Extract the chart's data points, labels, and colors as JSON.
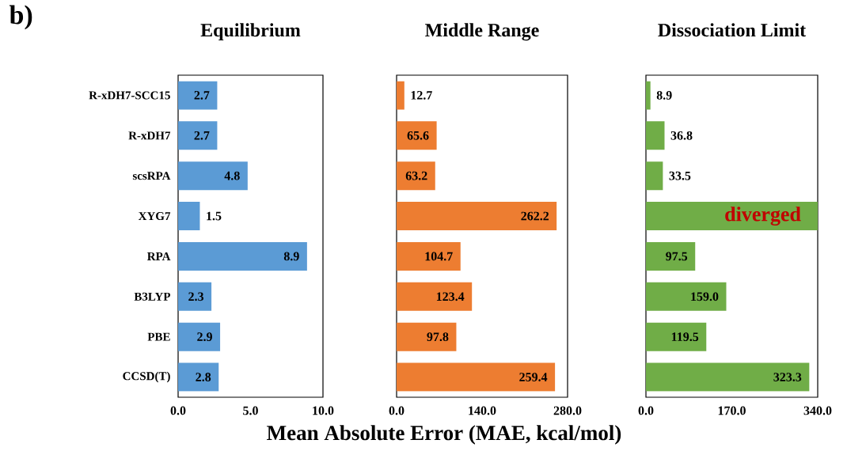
{
  "chart_data": [
    {
      "type": "bar",
      "orientation": "horizontal",
      "title": "Equilibrium",
      "categories": [
        "R-xDH7-SCC15",
        "R-xDH7",
        "scsRPA",
        "XYG7",
        "RPA",
        "B3LYP",
        "PBE",
        "CCSD(T)"
      ],
      "values": [
        2.7,
        2.7,
        4.8,
        1.5,
        8.9,
        2.3,
        2.9,
        2.8
      ],
      "value_labels": [
        "2.7",
        "2.7",
        "4.8",
        "1.5",
        "8.9",
        "2.3",
        "2.9",
        "2.8"
      ],
      "color": "#5b9bd5",
      "xlim": [
        0,
        10
      ],
      "xticks": [
        {
          "value": 0,
          "label": "0.0"
        },
        {
          "value": 5,
          "label": "5.0"
        },
        {
          "value": 10,
          "label": "10.0"
        }
      ],
      "annotations": [
        "b)"
      ]
    },
    {
      "type": "bar",
      "orientation": "horizontal",
      "title": "Middle Range",
      "xlabel": "Mean Absolute Error (MAE, kcal/mol)",
      "categories": [
        null,
        null,
        null,
        null,
        null,
        null,
        null,
        null
      ],
      "values": [
        12.7,
        65.6,
        63.2,
        262.2,
        104.7,
        123.4,
        97.8,
        259.4
      ],
      "value_labels": [
        "12.7",
        "65.6",
        "63.2",
        "262.2",
        "104.7",
        "123.4",
        "97.8",
        "259.4"
      ],
      "color": "#ed7d31",
      "xlim": [
        0,
        280
      ],
      "xticks": [
        {
          "value": 0,
          "label": "0.0"
        },
        {
          "value": 140,
          "label": "140.0"
        },
        {
          "value": 280,
          "label": "280.0"
        }
      ],
      "tick_labels": "x"
    },
    {
      "type": "bar",
      "orientation": "horizontal",
      "title": "Dissociation Limit",
      "categories": [
        null,
        null,
        null,
        null,
        null,
        null,
        null,
        null
      ],
      "values": [
        8.9,
        36.8,
        33.5,
        340,
        97.5,
        159.0,
        119.5,
        323.3
      ],
      "value_labels": [
        "8.9",
        "36.8",
        "33.5",
        null,
        "97.5",
        "159.0",
        "119.5",
        "323.3"
      ],
      "color": "#70ad47",
      "xlim": [
        0,
        340
      ],
      "xticks": [
        {
          "value": 0,
          "label": "0.0"
        },
        {
          "value": 170,
          "label": "170.0"
        },
        {
          "value": 340,
          "label": "340.0"
        }
      ],
      "tick_labels": "x",
      "annotations": [
        "diverged"
      ]
    }
  ]
}
